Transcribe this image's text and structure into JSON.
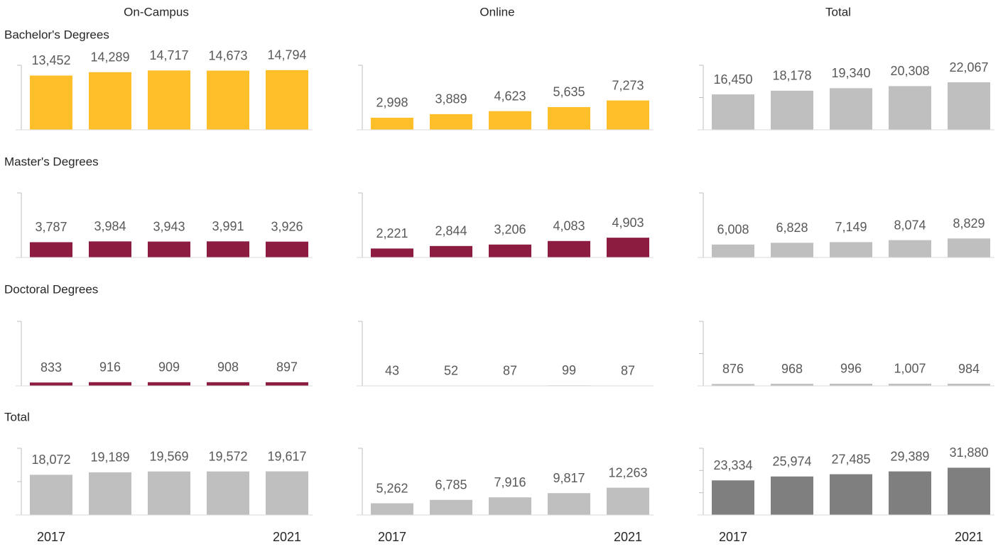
{
  "column_labels": [
    "On-Campus",
    "Online",
    "Total"
  ],
  "row_labels": [
    "Bachelor's Degrees",
    "Master's Degrees",
    "Doctoral Degrees",
    "Total"
  ],
  "chart_data": [
    {
      "type": "bar",
      "values": [
        13452,
        14289,
        14717,
        14673,
        14794
      ],
      "value_labels": [
        "13,452",
        "14,289",
        "14,717",
        "14,673",
        "14,794"
      ],
      "color": "#ffbf2b",
      "ylim": [
        0,
        16000
      ],
      "yticks": [
        0,
        16000
      ]
    },
    {
      "type": "bar",
      "values": [
        2998,
        3889,
        4623,
        5635,
        7273
      ],
      "value_labels": [
        "2,998",
        "3,889",
        "4,623",
        "5,635",
        "7,273"
      ],
      "color": "#ffbf2b",
      "ylim": [
        0,
        16000
      ],
      "yticks": [
        0,
        16000
      ]
    },
    {
      "type": "bar",
      "values": [
        16450,
        18178,
        19340,
        20308,
        22067
      ],
      "value_labels": [
        "16,450",
        "18,178",
        "19,340",
        "20,308",
        "22,067"
      ],
      "color": "#bfbfbf",
      "ylim": [
        0,
        30000
      ],
      "yticks": [
        0,
        15000,
        30000
      ]
    },
    {
      "type": "bar",
      "values": [
        3787,
        3984,
        3943,
        3991,
        3926
      ],
      "value_labels": [
        "3,787",
        "3,984",
        "3,943",
        "3,991",
        "3,926"
      ],
      "color": "#8c1d40",
      "ylim": [
        0,
        16000
      ],
      "yticks": [
        0,
        16000
      ]
    },
    {
      "type": "bar",
      "values": [
        2221,
        2844,
        3206,
        4083,
        4903
      ],
      "value_labels": [
        "2,221",
        "2,844",
        "3,206",
        "4,083",
        "4,903"
      ],
      "color": "#8c1d40",
      "ylim": [
        0,
        16000
      ],
      "yticks": [
        0,
        16000
      ]
    },
    {
      "type": "bar",
      "values": [
        6008,
        6828,
        7149,
        8074,
        8829
      ],
      "value_labels": [
        "6,008",
        "6,828",
        "7,149",
        "8,074",
        "8,829"
      ],
      "color": "#bfbfbf",
      "ylim": [
        0,
        30000
      ],
      "yticks": [
        0,
        30000
      ]
    },
    {
      "type": "bar",
      "values": [
        833,
        916,
        909,
        908,
        897
      ],
      "color": "#8c1d40",
      "ylim": [
        0,
        16000
      ],
      "yticks": [
        0,
        16000
      ]
    },
    {
      "type": "bar",
      "values": [
        43,
        52,
        87,
        99,
        87
      ],
      "color": "#8c1d40",
      "ylim": [
        0,
        16000
      ],
      "yticks": [
        0,
        16000
      ]
    },
    {
      "type": "bar",
      "values": [
        876,
        968,
        996,
        1007,
        984
      ],
      "value_labels": [
        "876",
        "968",
        "996",
        "1,007",
        "984"
      ],
      "color": "#bfbfbf",
      "ylim": [
        0,
        30000
      ],
      "yticks": [
        0,
        15000,
        30000
      ]
    },
    {
      "type": "bar",
      "categories": [
        "2017",
        null,
        null,
        null,
        "2021"
      ],
      "values": [
        18072,
        19189,
        19569,
        19572,
        19617
      ],
      "value_labels": [
        "18,072",
        "19,189",
        "19,569",
        "19,572",
        "19,617"
      ],
      "color": "#bfbfbf",
      "ylim": [
        0,
        30000
      ],
      "yticks": [
        0,
        15000,
        30000
      ]
    },
    {
      "type": "bar",
      "categories": [
        "2017",
        null,
        null,
        null,
        "2021"
      ],
      "values": [
        5262,
        6785,
        7916,
        9817,
        12263
      ],
      "value_labels": [
        "5,262",
        "6,785",
        "7,916",
        "9,817",
        "12,263"
      ],
      "color": "#bfbfbf",
      "ylim": [
        0,
        30000
      ],
      "yticks": [
        0,
        30000
      ]
    },
    {
      "type": "bar",
      "categories": [
        "2017",
        null,
        null,
        null,
        "2021"
      ],
      "values": [
        23334,
        25974,
        27485,
        29389,
        31880
      ],
      "value_labels": [
        "23,334",
        "25,974",
        "27,485",
        "29,389",
        "31,880"
      ],
      "color": "#7f7f7f",
      "ylim": [
        0,
        45000
      ],
      "yticks": [
        0,
        15000,
        30000,
        45000
      ]
    }
  ]
}
